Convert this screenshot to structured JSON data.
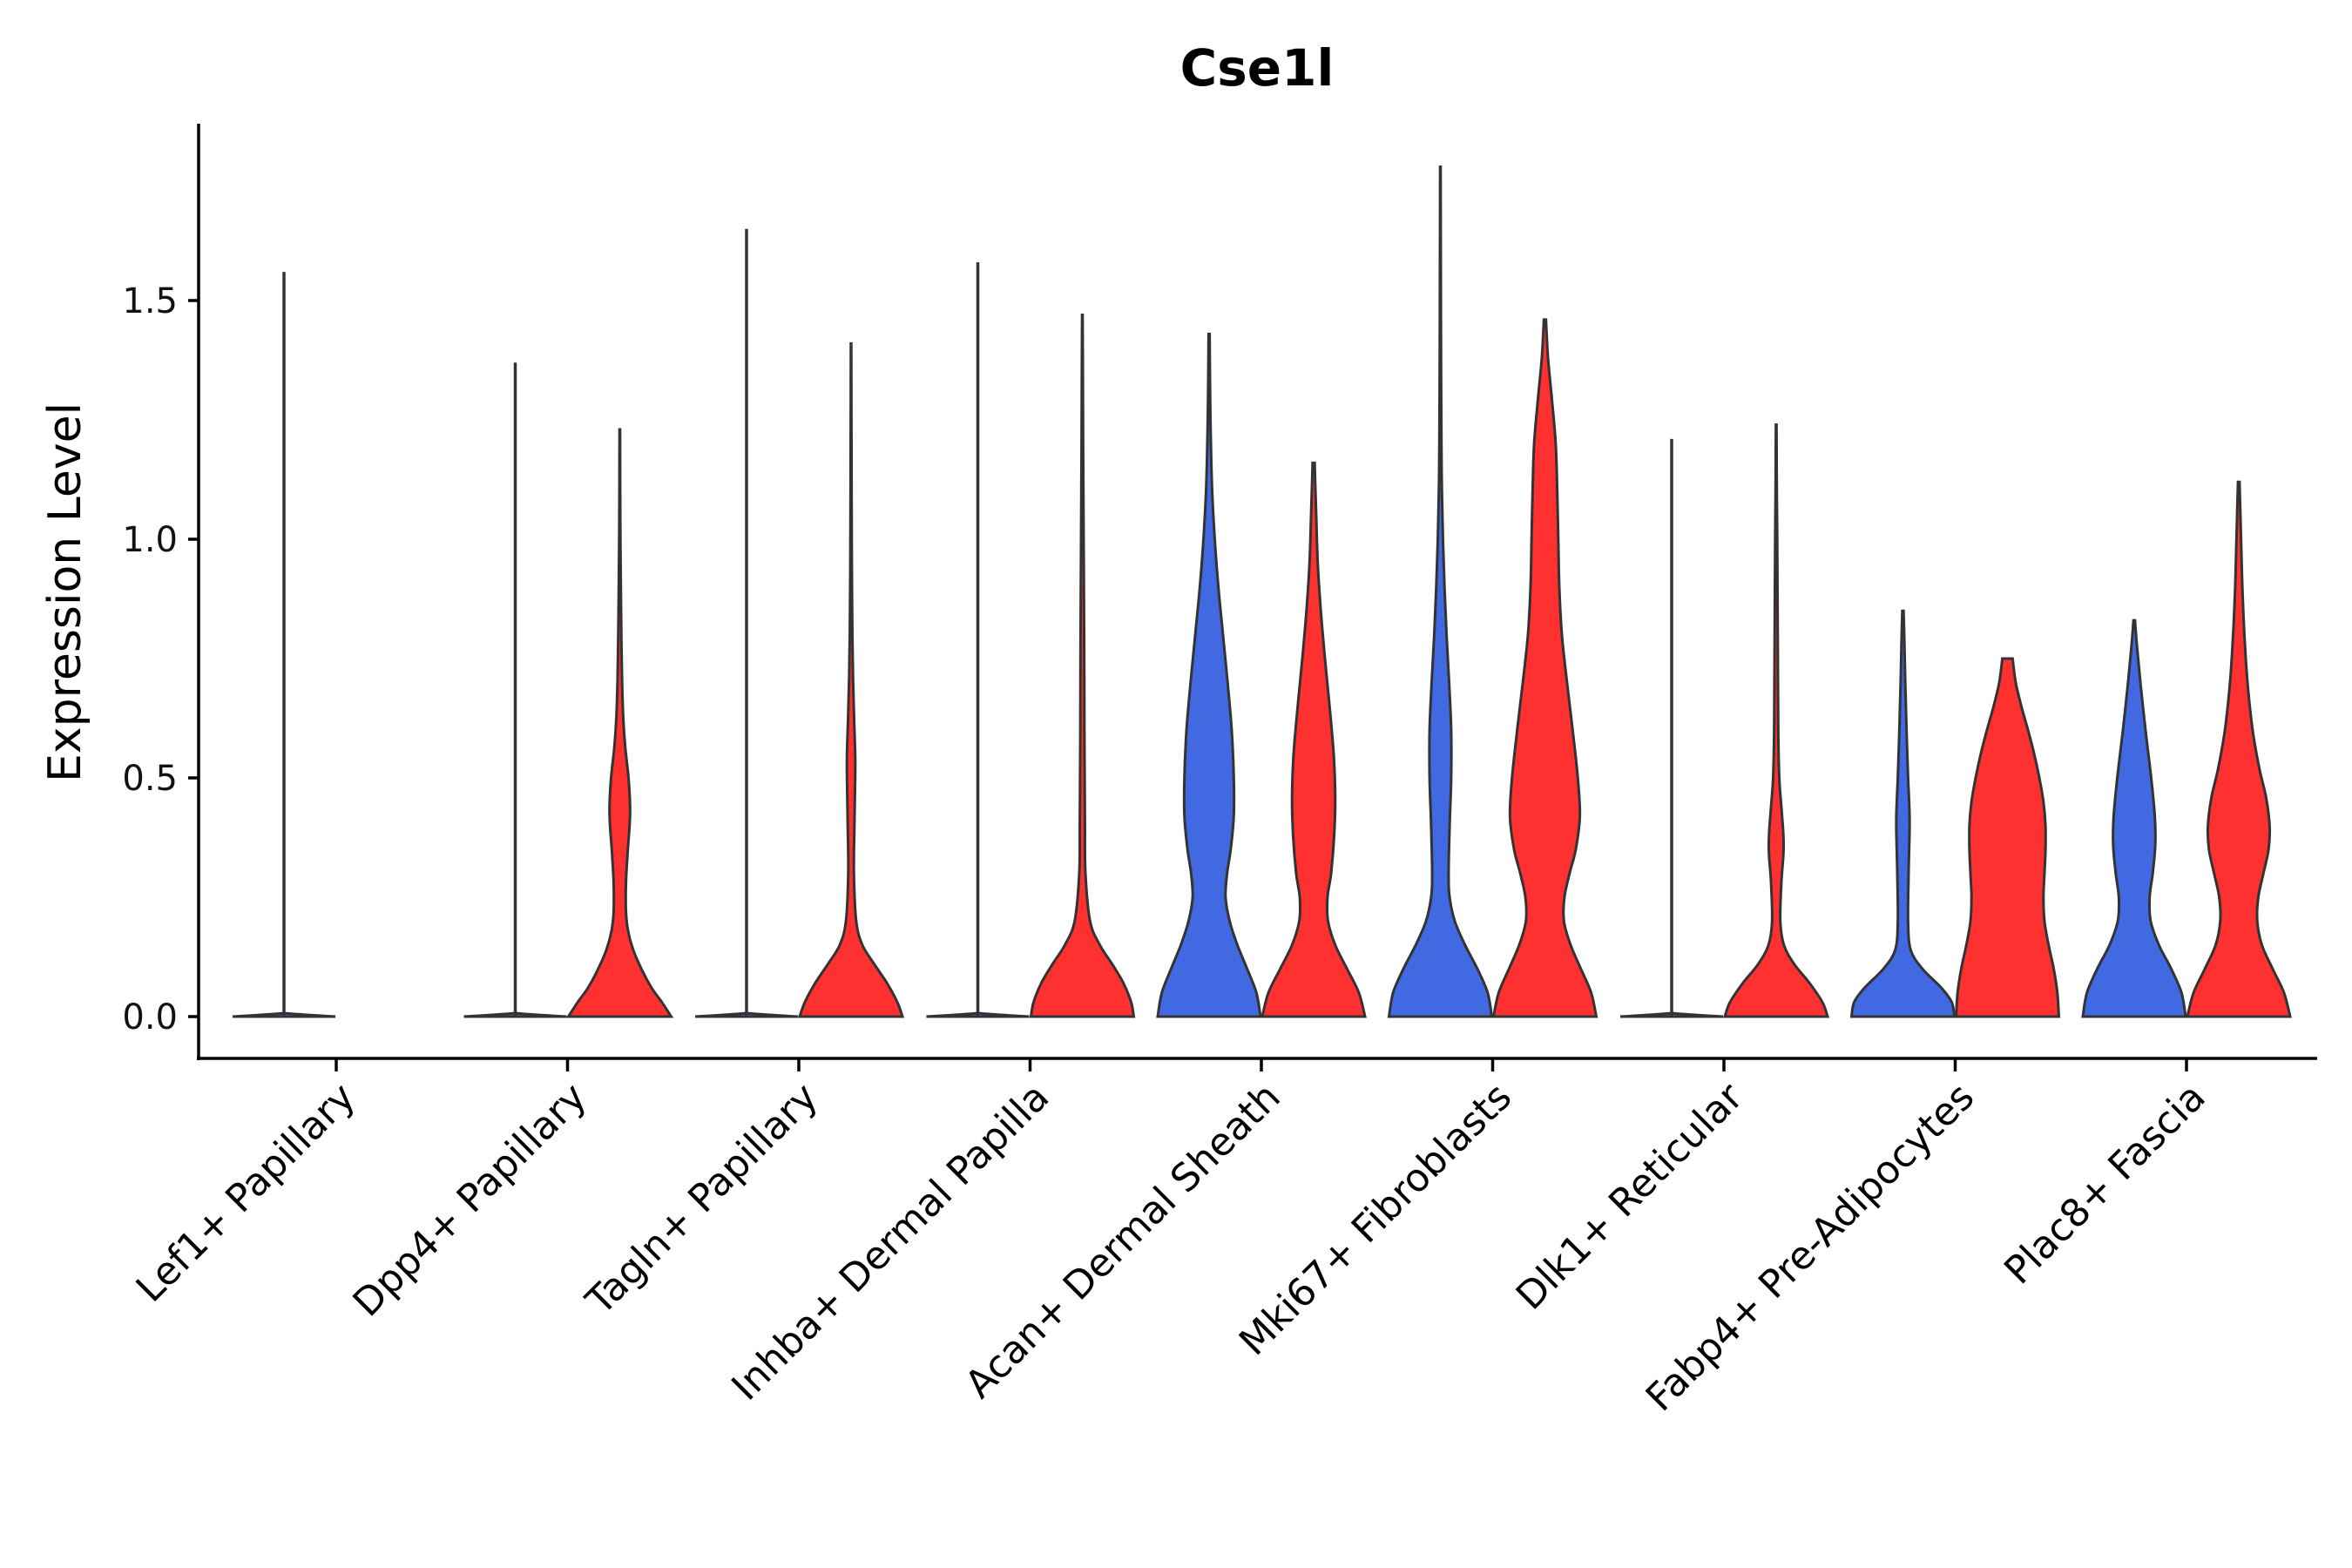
{
  "chart_data": {
    "type": "violin",
    "title": "Cse1l",
    "xlabel": "",
    "ylabel": "Expression Level",
    "ylim": [
      -0.09,
      1.87
    ],
    "yticks": [
      "0.0",
      "0.5",
      "1.0",
      "1.5"
    ],
    "ytick_values": [
      0.0,
      0.5,
      1.0,
      1.5
    ],
    "colors": {
      "group1": "#4169E1",
      "group2": "#FF3030",
      "outline": "#333333"
    },
    "categories": [
      "Lef1+ Papillary",
      "Dpp4+ Papillary",
      "Tagln+ Papillary",
      "Inhba+ Dermal Papilla",
      "Acan+ Dermal Sheath",
      "Mki67+ Fibroblasts",
      "Dlk1+ Reticular",
      "Fabp4+ Pre-Adipocytes",
      "Plac8+ Fascia"
    ],
    "series": [
      {
        "name": "group1",
        "color": "#4169E1",
        "max": [
          1.56,
          1.37,
          1.65,
          1.58,
          1.43,
          1.78,
          1.21,
          0.85,
          0.83
        ],
        "profiles": [
          [
            [
              0,
              1.0
            ],
            [
              0.01,
              0.02
            ],
            [
              0.05,
              0.006
            ],
            [
              0.3,
              0.004
            ],
            [
              1.0,
              0.003
            ],
            [
              1.56,
              0.002
            ]
          ],
          [
            [
              0,
              1.0
            ],
            [
              0.01,
              0.02
            ],
            [
              0.05,
              0.006
            ],
            [
              0.3,
              0.004
            ],
            [
              1.0,
              0.003
            ],
            [
              1.37,
              0.002
            ]
          ],
          [
            [
              0,
              1.0
            ],
            [
              0.01,
              0.02
            ],
            [
              0.05,
              0.006
            ],
            [
              0.3,
              0.004
            ],
            [
              1.0,
              0.003
            ],
            [
              1.65,
              0.002
            ]
          ],
          [
            [
              0,
              1.0
            ],
            [
              0.01,
              0.02
            ],
            [
              0.05,
              0.006
            ],
            [
              0.3,
              0.004
            ],
            [
              1.0,
              0.003
            ],
            [
              1.58,
              0.002
            ]
          ],
          [
            [
              0,
              1.0
            ],
            [
              0.05,
              0.92
            ],
            [
              0.1,
              0.74
            ],
            [
              0.15,
              0.55
            ],
            [
              0.2,
              0.4
            ],
            [
              0.25,
              0.32
            ],
            [
              0.3,
              0.35
            ],
            [
              0.35,
              0.42
            ],
            [
              0.42,
              0.48
            ],
            [
              0.5,
              0.48
            ],
            [
              0.6,
              0.44
            ],
            [
              0.7,
              0.36
            ],
            [
              0.8,
              0.27
            ],
            [
              0.9,
              0.18
            ],
            [
              1.0,
              0.11
            ],
            [
              1.1,
              0.06
            ],
            [
              1.2,
              0.035
            ],
            [
              1.3,
              0.02
            ],
            [
              1.43,
              0.01
            ]
          ],
          [
            [
              0,
              1.0
            ],
            [
              0.05,
              0.92
            ],
            [
              0.1,
              0.72
            ],
            [
              0.15,
              0.48
            ],
            [
              0.2,
              0.28
            ],
            [
              0.25,
              0.18
            ],
            [
              0.3,
              0.16
            ],
            [
              0.4,
              0.18
            ],
            [
              0.5,
              0.21
            ],
            [
              0.6,
              0.21
            ],
            [
              0.7,
              0.17
            ],
            [
              0.8,
              0.12
            ],
            [
              0.9,
              0.08
            ],
            [
              1.0,
              0.05
            ],
            [
              1.1,
              0.03
            ],
            [
              1.2,
              0.02
            ],
            [
              1.4,
              0.012
            ],
            [
              1.6,
              0.008
            ],
            [
              1.78,
              0.005
            ]
          ],
          [
            [
              0,
              1.0
            ],
            [
              0.01,
              0.02
            ],
            [
              0.05,
              0.006
            ],
            [
              0.3,
              0.004
            ],
            [
              0.8,
              0.003
            ],
            [
              1.21,
              0.002
            ]
          ],
          [
            [
              0,
              1.0
            ],
            [
              0.03,
              0.95
            ],
            [
              0.06,
              0.75
            ],
            [
              0.1,
              0.38
            ],
            [
              0.14,
              0.15
            ],
            [
              0.2,
              0.1
            ],
            [
              0.3,
              0.11
            ],
            [
              0.4,
              0.13
            ],
            [
              0.45,
              0.12
            ],
            [
              0.5,
              0.1
            ],
            [
              0.6,
              0.07
            ],
            [
              0.7,
              0.045
            ],
            [
              0.8,
              0.025
            ],
            [
              0.85,
              0.012
            ]
          ],
          [
            [
              0,
              1.0
            ],
            [
              0.05,
              0.92
            ],
            [
              0.1,
              0.72
            ],
            [
              0.15,
              0.48
            ],
            [
              0.2,
              0.32
            ],
            [
              0.25,
              0.3
            ],
            [
              0.3,
              0.36
            ],
            [
              0.36,
              0.41
            ],
            [
              0.42,
              0.4
            ],
            [
              0.5,
              0.33
            ],
            [
              0.6,
              0.22
            ],
            [
              0.7,
              0.12
            ],
            [
              0.78,
              0.05
            ],
            [
              0.83,
              0.015
            ]
          ]
        ]
      },
      {
        "name": "group2",
        "color": "#FF3030",
        "max": [
          null,
          1.23,
          1.41,
          1.47,
          1.16,
          1.46,
          1.24,
          0.75,
          1.12
        ],
        "profiles": [
          null,
          [
            [
              0,
              1.0
            ],
            [
              0.03,
              0.82
            ],
            [
              0.06,
              0.62
            ],
            [
              0.1,
              0.42
            ],
            [
              0.14,
              0.26
            ],
            [
              0.18,
              0.16
            ],
            [
              0.22,
              0.12
            ],
            [
              0.28,
              0.12
            ],
            [
              0.34,
              0.15
            ],
            [
              0.4,
              0.19
            ],
            [
              0.44,
              0.2
            ],
            [
              0.5,
              0.17
            ],
            [
              0.56,
              0.11
            ],
            [
              0.62,
              0.07
            ],
            [
              0.7,
              0.045
            ],
            [
              0.8,
              0.03
            ],
            [
              0.9,
              0.02
            ],
            [
              1.0,
              0.012
            ],
            [
              1.1,
              0.008
            ],
            [
              1.23,
              0.005
            ]
          ],
          [
            [
              0,
              1.0
            ],
            [
              0.03,
              0.9
            ],
            [
              0.07,
              0.7
            ],
            [
              0.11,
              0.45
            ],
            [
              0.15,
              0.22
            ],
            [
              0.2,
              0.1
            ],
            [
              0.3,
              0.055
            ],
            [
              0.4,
              0.065
            ],
            [
              0.5,
              0.08
            ],
            [
              0.55,
              0.08
            ],
            [
              0.62,
              0.06
            ],
            [
              0.7,
              0.04
            ],
            [
              0.8,
              0.025
            ],
            [
              0.95,
              0.015
            ],
            [
              1.1,
              0.01
            ],
            [
              1.25,
              0.007
            ],
            [
              1.41,
              0.004
            ]
          ],
          [
            [
              0,
              1.0
            ],
            [
              0.03,
              0.95
            ],
            [
              0.07,
              0.8
            ],
            [
              0.11,
              0.58
            ],
            [
              0.15,
              0.34
            ],
            [
              0.2,
              0.15
            ],
            [
              0.3,
              0.06
            ],
            [
              0.4,
              0.05
            ],
            [
              0.5,
              0.045
            ],
            [
              0.6,
              0.04
            ],
            [
              0.8,
              0.035
            ],
            [
              1.0,
              0.025
            ],
            [
              1.2,
              0.015
            ],
            [
              1.35,
              0.01
            ],
            [
              1.47,
              0.005
            ]
          ],
          [
            [
              0,
              1.0
            ],
            [
              0.05,
              0.88
            ],
            [
              0.1,
              0.65
            ],
            [
              0.15,
              0.42
            ],
            [
              0.2,
              0.28
            ],
            [
              0.25,
              0.27
            ],
            [
              0.3,
              0.34
            ],
            [
              0.38,
              0.4
            ],
            [
              0.46,
              0.42
            ],
            [
              0.55,
              0.39
            ],
            [
              0.65,
              0.31
            ],
            [
              0.75,
              0.22
            ],
            [
              0.85,
              0.14
            ],
            [
              0.95,
              0.08
            ],
            [
              1.05,
              0.05
            ],
            [
              1.12,
              0.03
            ],
            [
              1.16,
              0.02
            ]
          ],
          [
            [
              0,
              1.0
            ],
            [
              0.05,
              0.9
            ],
            [
              0.1,
              0.7
            ],
            [
              0.15,
              0.5
            ],
            [
              0.2,
              0.37
            ],
            [
              0.25,
              0.38
            ],
            [
              0.3,
              0.48
            ],
            [
              0.35,
              0.6
            ],
            [
              0.42,
              0.68
            ],
            [
              0.5,
              0.64
            ],
            [
              0.6,
              0.54
            ],
            [
              0.7,
              0.43
            ],
            [
              0.8,
              0.33
            ],
            [
              0.9,
              0.28
            ],
            [
              1.0,
              0.26
            ],
            [
              1.1,
              0.24
            ],
            [
              1.2,
              0.21
            ],
            [
              1.3,
              0.13
            ],
            [
              1.38,
              0.06
            ],
            [
              1.46,
              0.02
            ]
          ],
          [
            [
              0,
              1.0
            ],
            [
              0.03,
              0.9
            ],
            [
              0.07,
              0.65
            ],
            [
              0.11,
              0.35
            ],
            [
              0.15,
              0.15
            ],
            [
              0.2,
              0.08
            ],
            [
              0.28,
              0.1
            ],
            [
              0.34,
              0.14
            ],
            [
              0.38,
              0.14
            ],
            [
              0.44,
              0.1
            ],
            [
              0.5,
              0.06
            ],
            [
              0.6,
              0.04
            ],
            [
              0.8,
              0.03
            ],
            [
              1.0,
              0.02
            ],
            [
              1.1,
              0.012
            ],
            [
              1.24,
              0.006
            ]
          ],
          [
            [
              0,
              1.0
            ],
            [
              0.05,
              0.97
            ],
            [
              0.1,
              0.9
            ],
            [
              0.15,
              0.8
            ],
            [
              0.2,
              0.72
            ],
            [
              0.25,
              0.7
            ],
            [
              0.3,
              0.72
            ],
            [
              0.35,
              0.74
            ],
            [
              0.4,
              0.74
            ],
            [
              0.45,
              0.7
            ],
            [
              0.5,
              0.62
            ],
            [
              0.55,
              0.52
            ],
            [
              0.6,
              0.4
            ],
            [
              0.65,
              0.27
            ],
            [
              0.7,
              0.16
            ],
            [
              0.75,
              0.1
            ]
          ],
          [
            [
              0,
              1.0
            ],
            [
              0.05,
              0.88
            ],
            [
              0.1,
              0.66
            ],
            [
              0.15,
              0.45
            ],
            [
              0.2,
              0.36
            ],
            [
              0.25,
              0.38
            ],
            [
              0.3,
              0.48
            ],
            [
              0.35,
              0.58
            ],
            [
              0.4,
              0.6
            ],
            [
              0.46,
              0.53
            ],
            [
              0.52,
              0.4
            ],
            [
              0.6,
              0.27
            ],
            [
              0.7,
              0.17
            ],
            [
              0.8,
              0.11
            ],
            [
              0.9,
              0.07
            ],
            [
              1.0,
              0.045
            ],
            [
              1.06,
              0.03
            ],
            [
              1.12,
              0.015
            ]
          ]
        ]
      }
    ]
  }
}
